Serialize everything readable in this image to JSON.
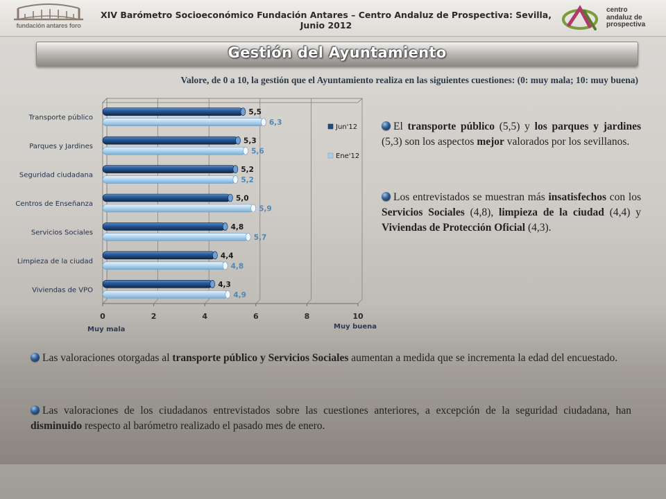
{
  "header": {
    "logo_left_caption": "fundación antares foro",
    "title": "XIV Barómetro Socioeconómico Fundación Antares – Centro Andaluz de Prospectiva: Sevilla, Junio 2012",
    "logo_right_lines": [
      "centro",
      "andaluz de",
      "prospectiva"
    ]
  },
  "slide_title": "Gestión del Ayuntamiento",
  "question": "Valore, de 0 a 10, la gestión que el Ayuntamiento  realiza en las siguientes cuestiones: (0: muy mala; 10: muy buena)",
  "chart_data": {
    "type": "bar",
    "orientation": "horizontal",
    "categories": [
      "Transporte público",
      "Parques y Jardines",
      "Seguridad ciudadana",
      "Centros de Enseñanza",
      "Servicios Sociales",
      "Limpieza de la ciudad",
      "Viviendas de VPO"
    ],
    "series": [
      {
        "name": "Jun'12",
        "values": [
          5.5,
          5.3,
          5.2,
          5.0,
          4.8,
          4.4,
          4.3
        ],
        "labels": [
          "5,5",
          "5,3",
          "5,2",
          "5,0",
          "4,8",
          "4,4",
          "4,3"
        ],
        "color": "#1f4e86"
      },
      {
        "name": "Ene'12",
        "values": [
          6.3,
          5.6,
          5.2,
          5.9,
          5.7,
          4.8,
          4.9
        ],
        "labels": [
          "6,3",
          "5,6",
          "5,2",
          "5,9",
          "5,7",
          "4,8",
          "4,9"
        ],
        "color": "#a9cdea"
      }
    ],
    "xlim": [
      0,
      10
    ],
    "xticks": [
      "0",
      "2",
      "4",
      "6",
      "8",
      "10"
    ],
    "xlabel_left": "Muy mala",
    "xlabel_right": "Muy buena",
    "legend_position": "right",
    "grid": true
  },
  "paragraphs": {
    "p1": [
      {
        "t": "El "
      },
      {
        "t": "transporte público",
        "b": true
      },
      {
        "t": " (5,5) y "
      },
      {
        "t": "los parques y jardines",
        "b": true
      },
      {
        "t": " (5,3) son los aspectos "
      },
      {
        "t": "mejor",
        "b": true
      },
      {
        "t": " valorados por los sevillanos."
      }
    ],
    "p2": [
      {
        "t": "Los entrevistados se muestran más "
      },
      {
        "t": "insatisfechos",
        "b": true
      },
      {
        "t": " con los "
      },
      {
        "t": "Servicios Sociales",
        "b": true
      },
      {
        "t": " (4,8), "
      },
      {
        "t": "limpieza de la ciudad",
        "b": true
      },
      {
        "t": " (4,4) y "
      },
      {
        "t": "Viviendas de Protección Oficial",
        "b": true
      },
      {
        "t": " (4,3)."
      }
    ],
    "p3": [
      {
        "t": "Las valoraciones otorgadas al "
      },
      {
        "t": "transporte público y Servicios Sociales",
        "b": true
      },
      {
        "t": " aumentan a medida que se incrementa la edad del encuestado."
      }
    ],
    "p4": [
      {
        "t": "Las valoraciones de los ciudadanos entrevistados sobre las cuestiones anteriores, a excepción de la seguridad ciudadana,  han "
      },
      {
        "t": "disminuido",
        "b": true
      },
      {
        "t": " respecto al barómetro realizado el pasado mes de enero."
      }
    ]
  }
}
